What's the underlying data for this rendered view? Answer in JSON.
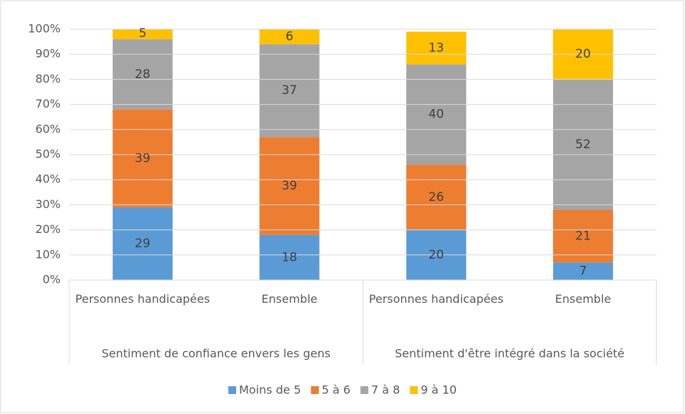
{
  "chart_data": {
    "type": "stacked_bar",
    "groups": [
      {
        "label": "Sentiment de confiance envers les gens",
        "categories": [
          "Personnes handicapées",
          "Ensemble"
        ]
      },
      {
        "label": "Sentiment d'être intégré dans la société",
        "categories": [
          "Personnes handicapées",
          "Ensemble"
        ]
      }
    ],
    "series": [
      {
        "name": "Moins de 5",
        "color": "#5b9bd5",
        "values": [
          29,
          18,
          20,
          7
        ]
      },
      {
        "name": "5 à 6",
        "color": "#ed7d31",
        "values": [
          39,
          39,
          26,
          21
        ]
      },
      {
        "name": "7 à 8",
        "color": "#a5a5a5",
        "values": [
          28,
          37,
          40,
          52
        ]
      },
      {
        "name": "9 à 10",
        "color": "#ffc000",
        "values": [
          5,
          6,
          13,
          20
        ]
      }
    ],
    "ylim": [
      0,
      100
    ],
    "yticks": [
      {
        "value": 0,
        "label": "0%"
      },
      {
        "value": 10,
        "label": "10%"
      },
      {
        "value": 20,
        "label": "20%"
      },
      {
        "value": 30,
        "label": "30%"
      },
      {
        "value": 40,
        "label": "40%"
      },
      {
        "value": 50,
        "label": "50%"
      },
      {
        "value": 60,
        "label": "60%"
      },
      {
        "value": 70,
        "label": "70%"
      },
      {
        "value": 80,
        "label": "80%"
      },
      {
        "value": 90,
        "label": "90%"
      },
      {
        "value": 100,
        "label": "100%"
      }
    ],
    "grid": true,
    "legend": "bottom"
  }
}
